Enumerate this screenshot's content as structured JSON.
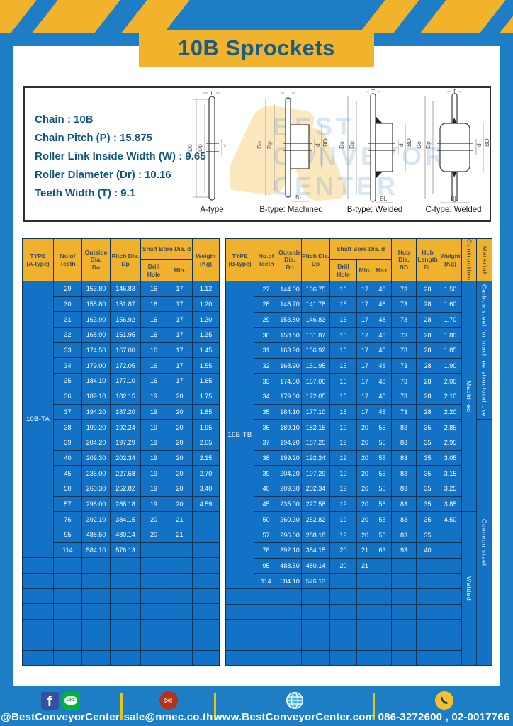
{
  "page": {
    "title": "10B Sprockets"
  },
  "specs": {
    "lines": [
      "Chain : 10B",
      "Chain Pitch (P) : 15.875",
      "Roller Link Inside Width (W) : 9.65",
      "Roller Diameter (Dr) : 10.16",
      "Teeth Width (T) : 9.1"
    ]
  },
  "watermark": {
    "text": "BEST\nCONVEYOR\nCENTER"
  },
  "diagrams": {
    "captions": [
      "A-type",
      "B-type: Machined",
      "B-type: Welded",
      "C-type: Welded"
    ],
    "dims": {
      "t": "T",
      "do": "Do",
      "dp": "Dp",
      "d": "d",
      "bd": "BD",
      "bl": "BL"
    }
  },
  "colors": {
    "frame_blue": "#1d7ec6",
    "cell_blue": "#1172c6",
    "grid_navy": "#0e3355",
    "accent_yellow": "#f1b32c",
    "title_blue": "#1e5c82",
    "footer_separator_yellow": "#e4c518"
  },
  "table_a": {
    "type_label": "10B-TA",
    "cols": 6,
    "empty_rows": 7,
    "header": [
      [
        {
          "t": "TYPE\n(A-type)",
          "rs": 2
        },
        {
          "t": "No.of\nTeeth",
          "rs": 2
        },
        {
          "t": "Outside\nDia.\nDo",
          "rs": 2
        },
        {
          "t": "Pitch Dia.\nDp",
          "rs": 2
        },
        {
          "t": "Shaft Bore Dia. d",
          "cs": 2
        },
        {
          "t": "Weight\n(Kg)",
          "rs": 2
        }
      ],
      [
        {
          "t": "Drill Hole"
        },
        {
          "t": "Min."
        }
      ]
    ],
    "rows": [
      [
        "29",
        "153.80",
        "146.83",
        "16",
        "17",
        "1.12"
      ],
      [
        "30",
        "158.80",
        "151.87",
        "16",
        "17",
        "1.20"
      ],
      [
        "31",
        "163.90",
        "156.92",
        "16",
        "17",
        "1.30"
      ],
      [
        "32",
        "168.90",
        "161.95",
        "16",
        "17",
        "1.35"
      ],
      [
        "33",
        "174.50",
        "167.00",
        "16",
        "17",
        "1.45"
      ],
      [
        "34",
        "179.00",
        "172.05",
        "16",
        "17",
        "1.55"
      ],
      [
        "35",
        "184.10",
        "177.10",
        "16",
        "17",
        "1.65"
      ],
      [
        "36",
        "189.10",
        "182.15",
        "19",
        "20",
        "1.75"
      ],
      [
        "37",
        "194.20",
        "187.20",
        "19",
        "20",
        "1.85"
      ],
      [
        "38",
        "199.20",
        "192.24",
        "19",
        "20",
        "1.95"
      ],
      [
        "39",
        "204.20",
        "197.29",
        "19",
        "20",
        "2.05"
      ],
      [
        "40",
        "209.30",
        "202.34",
        "19",
        "20",
        "2.15"
      ],
      [
        "45",
        "235.00",
        "227.58",
        "19",
        "20",
        "2.70"
      ],
      [
        "50",
        "260.30",
        "252.82",
        "19",
        "20",
        "3.40"
      ],
      [
        "57",
        "296.00",
        "288.18",
        "19",
        "20",
        "4.59"
      ],
      [
        "76",
        "392.10",
        "384.15",
        "20",
        "21",
        ""
      ],
      [
        "95",
        "488.50",
        "480.14",
        "20",
        "21",
        ""
      ],
      [
        "114",
        "584.10",
        "576.13",
        "",
        "",
        ""
      ]
    ]
  },
  "table_b": {
    "type_label": "10B-TB",
    "cols": 9,
    "empty_rows": 5,
    "header": [
      [
        {
          "t": "TYPE\n(B-type)",
          "rs": 2
        },
        {
          "t": "No.of\nTeeth",
          "rs": 2
        },
        {
          "t": "Outside\nDia.\nDo",
          "rs": 2
        },
        {
          "t": "Pitch Dia.\nDp",
          "rs": 2
        },
        {
          "t": "Shaft Bore Dia. d",
          "cs": 3
        },
        {
          "t": "Hub Dia.\nBD",
          "rs": 2
        },
        {
          "t": "Hub\nLength\nBL",
          "rs": 2
        },
        {
          "t": "Weight\n(Kg)",
          "rs": 2
        },
        {
          "t": "Contruction",
          "rs": 2,
          "v": true
        },
        {
          "t": "Material",
          "rs": 2,
          "v": true
        }
      ],
      [
        {
          "t": "Drill Hole"
        },
        {
          "t": "Min."
        },
        {
          "t": "Max."
        }
      ]
    ],
    "rows": [
      [
        "27",
        "144.00",
        "136.75",
        "16",
        "17",
        "48",
        "73",
        "28",
        "1.50"
      ],
      [
        "28",
        "148.70",
        "141.78",
        "16",
        "17",
        "48",
        "73",
        "28",
        "1.60"
      ],
      [
        "29",
        "153.80",
        "146.83",
        "16",
        "17",
        "48",
        "73",
        "28",
        "1.70"
      ],
      [
        "30",
        "158.80",
        "151.87",
        "16",
        "17",
        "48",
        "73",
        "28",
        "1.80"
      ],
      [
        "31",
        "163.90",
        "156.92",
        "16",
        "17",
        "48",
        "73",
        "28",
        "1.85"
      ],
      [
        "32",
        "168.90",
        "161.95",
        "16",
        "17",
        "48",
        "73",
        "28",
        "1.90"
      ],
      [
        "33",
        "174.50",
        "167.00",
        "16",
        "17",
        "48",
        "73",
        "28",
        "2.00"
      ],
      [
        "34",
        "179.00",
        "172.05",
        "16",
        "17",
        "48",
        "73",
        "28",
        "2.10"
      ],
      [
        "35",
        "184.10",
        "177.10",
        "16",
        "17",
        "48",
        "73",
        "28",
        "2.20"
      ],
      [
        "36",
        "189.10",
        "182.15",
        "19",
        "20",
        "55",
        "83",
        "35",
        "2.85"
      ],
      [
        "37",
        "194.20",
        "187.20",
        "19",
        "20",
        "55",
        "83",
        "35",
        "2.95"
      ],
      [
        "38",
        "199.20",
        "192.24",
        "19",
        "20",
        "55",
        "83",
        "35",
        "3.05"
      ],
      [
        "39",
        "204.20",
        "197.29",
        "19",
        "20",
        "55",
        "83",
        "35",
        "3.15"
      ],
      [
        "40",
        "209.30",
        "202.34",
        "19",
        "20",
        "55",
        "83",
        "35",
        "3.25"
      ],
      [
        "45",
        "235.00",
        "227.58",
        "19",
        "20",
        "55",
        "83",
        "35",
        "3.85"
      ],
      [
        "50",
        "260.30",
        "252.82",
        "19",
        "20",
        "55",
        "83",
        "35",
        "4.50"
      ],
      [
        "57",
        "296.00",
        "288.18",
        "19",
        "20",
        "55",
        "83",
        "35",
        ""
      ],
      [
        "76",
        "392.10",
        "384.15",
        "20",
        "21",
        "63",
        "93",
        "40",
        ""
      ],
      [
        "95",
        "488.50",
        "480.14",
        "20",
        "21",
        "",
        "",
        "",
        ""
      ],
      [
        "114",
        "584.10",
        "576.13",
        "",
        "",
        "",
        "",
        "",
        ""
      ]
    ],
    "extras": [
      {
        "name": "construction",
        "cells": [
          {
            "t": "Machined",
            "rs": 15
          },
          {
            "t": "Welded",
            "rs": 10
          }
        ]
      },
      {
        "name": "material",
        "cells": [
          {
            "t": "Carbon steel for  machine structural use",
            "rs": 9
          },
          {
            "t": "Common steel",
            "rs": 16
          }
        ]
      }
    ]
  },
  "footer": {
    "items": [
      {
        "icons": [
          "facebook-icon",
          "line-icon"
        ],
        "label": "@BestConveyorCenter"
      },
      {
        "icons": [
          "mail-icon"
        ],
        "label": "sale@nmec.co.th"
      },
      {
        "icons": [
          "globe-icon"
        ],
        "label": "www.BestConveyorCenter.com"
      },
      {
        "icons": [
          "phone-icon"
        ],
        "label": "086-3272600 , 02-0017766"
      }
    ],
    "glyphs": {
      "facebook": "f",
      "line": "LINE",
      "mail": "✉"
    }
  }
}
